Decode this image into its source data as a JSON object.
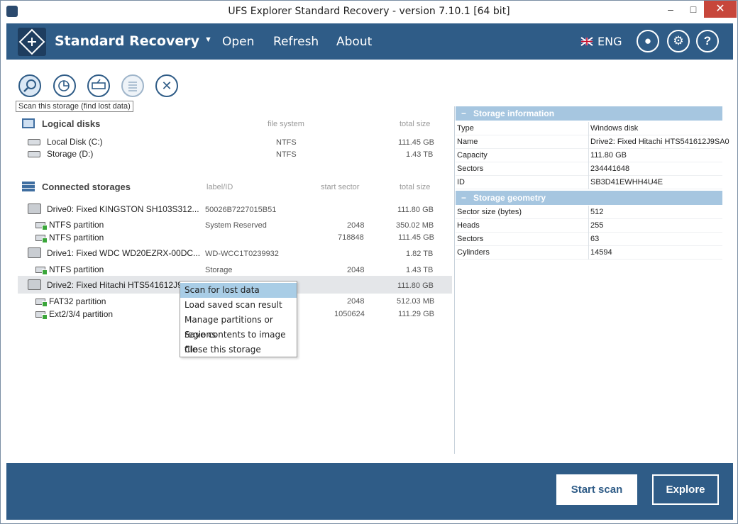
{
  "window": {
    "title": "UFS Explorer Standard Recovery - version 7.10.1 [64 bit]"
  },
  "header": {
    "brand": "Standard Recovery",
    "menu": [
      "Open",
      "Refresh",
      "About"
    ],
    "language": "ENG"
  },
  "toolbar": {
    "tooltip": "Scan this storage (find lost data)",
    "buttons": [
      "scan-icon",
      "partition-icon",
      "image-icon",
      "list-icon",
      "close-icon"
    ]
  },
  "logical_disks": {
    "title": "Logical disks",
    "col_fs": "file system",
    "col_size": "total size",
    "items": [
      {
        "name": "Local Disk (C:)",
        "fs": "NTFS",
        "size": "111.45 GB"
      },
      {
        "name": "Storage (D:)",
        "fs": "NTFS",
        "size": "1.43 TB"
      }
    ]
  },
  "storages": {
    "title": "Connected storages",
    "col_label": "label/ID",
    "col_start": "start sector",
    "col_size": "total size",
    "drive0": {
      "name": "Drive0: Fixed KINGSTON SH103S312...",
      "label": "50026B7227015B51",
      "size": "111.80 GB"
    },
    "drive0_parts": [
      {
        "name": "NTFS partition",
        "label": "System Reserved",
        "start": "2048",
        "size": "350.02 MB"
      },
      {
        "name": "NTFS partition",
        "label": "",
        "start": "718848",
        "size": "111.45 GB"
      }
    ],
    "drive1": {
      "name": "Drive1: Fixed WDC WD20EZRX-00DC...",
      "label": "WD-WCC1T0239932",
      "size": "1.82 TB"
    },
    "drive1_parts": [
      {
        "name": "NTFS partition",
        "label": "Storage",
        "start": "2048",
        "size": "1.43 TB"
      }
    ],
    "drive2": {
      "name": "Drive2: Fixed Hitachi HTS541612J9",
      "size": "111.80 GB"
    },
    "drive2_parts": [
      {
        "name": "FAT32 partition",
        "start": "2048",
        "size": "512.03 MB"
      },
      {
        "name": "Ext2/3/4 partition",
        "start": "1050624",
        "size": "111.29 GB"
      }
    ]
  },
  "context_menu": [
    "Scan for lost data",
    "Load saved scan result",
    "Manage partitions or regions",
    "Save contents to image file",
    "Close this storage"
  ],
  "storage_info": {
    "title": "Storage information",
    "rows": [
      {
        "key": "Type",
        "value": "Windows disk"
      },
      {
        "key": "Name",
        "value": "Drive2: Fixed Hitachi HTS541612J9SA0"
      },
      {
        "key": "Capacity",
        "value": "111.80 GB"
      },
      {
        "key": "Sectors",
        "value": "234441648"
      },
      {
        "key": "ID",
        "value": "SB3D41EWHH4U4E"
      }
    ]
  },
  "storage_geometry": {
    "title": "Storage geometry",
    "rows": [
      {
        "key": "Sector size (bytes)",
        "value": "512"
      },
      {
        "key": "Heads",
        "value": "255"
      },
      {
        "key": "Sectors",
        "value": "63"
      },
      {
        "key": "Cylinders",
        "value": "14594"
      }
    ]
  },
  "footer": {
    "start_scan": "Start scan",
    "explore": "Explore"
  },
  "colors": {
    "accent": "#2f5c87",
    "panel_head": "#a6c6e0",
    "selection": "#a9cde6"
  }
}
